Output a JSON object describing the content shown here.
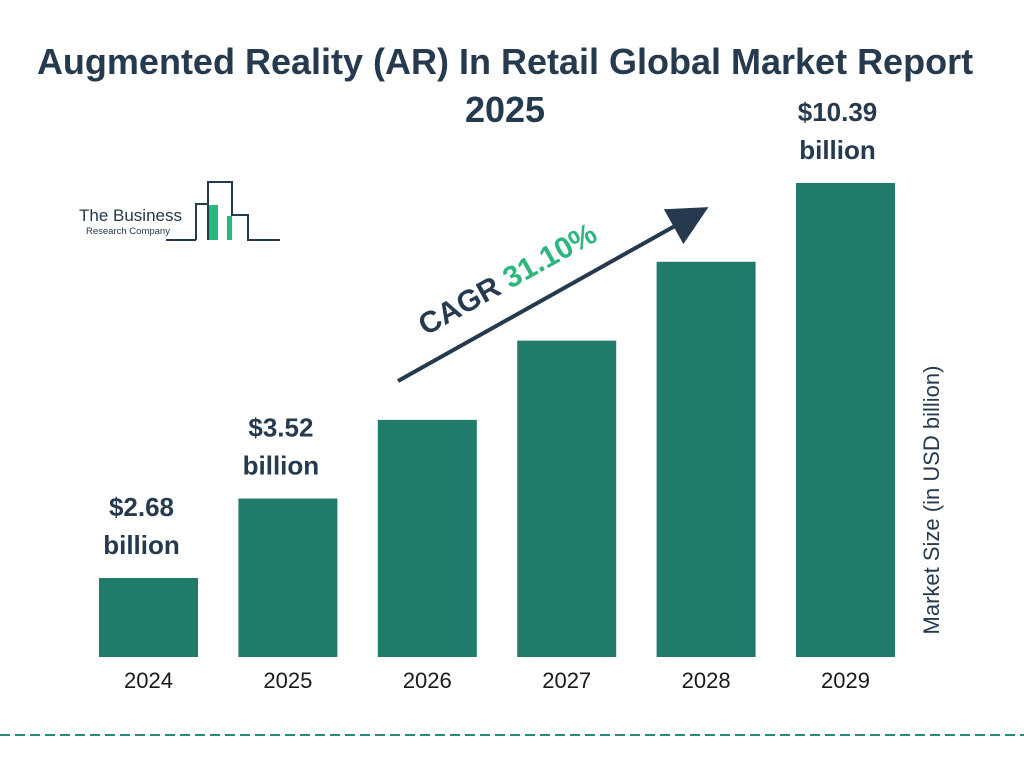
{
  "chart_data": {
    "type": "bar",
    "title": "Augmented Reality (AR) In Retail Global Market Report 2025",
    "categories": [
      "2024",
      "2025",
      "2026",
      "2027",
      "2028",
      "2029"
    ],
    "values": [
      2.68,
      3.52,
      4.61,
      6.05,
      7.93,
      10.39
    ],
    "data_labels": [
      "$2.68 billion",
      "$3.52 billion",
      "",
      "",
      "",
      "$10.39 billion"
    ],
    "ylabel": "Market Size (in USD billion)",
    "xlabel": "",
    "annotation": {
      "label": "CAGR",
      "value": "31.10%"
    },
    "grid": false,
    "bar_color": "#217b6b",
    "accent_color": "#2db67e"
  },
  "logo": {
    "line1": "The Business",
    "line2": "Research Company"
  }
}
